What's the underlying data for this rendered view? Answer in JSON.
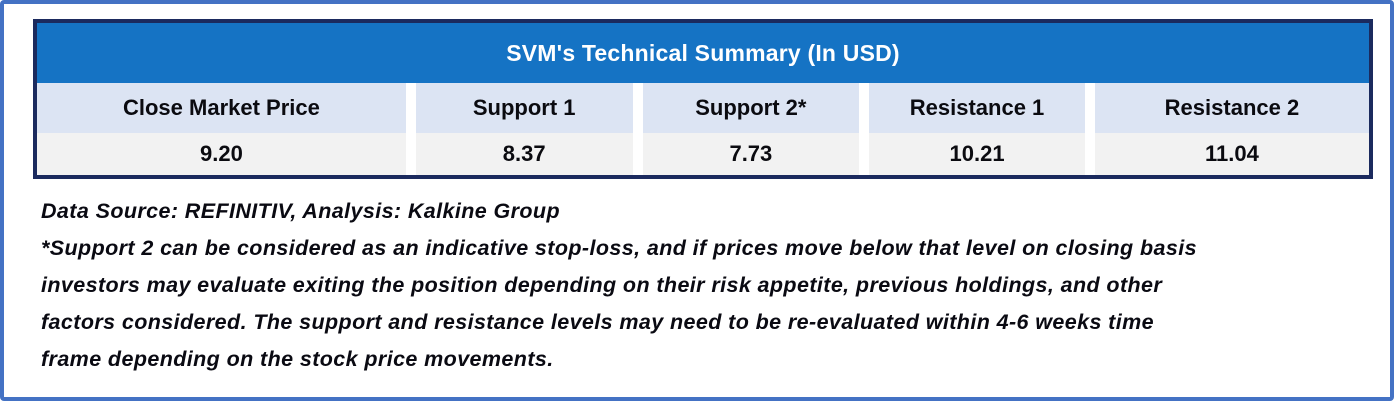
{
  "colors": {
    "outer_frame": "#4472C4",
    "table_border": "#1B2A5E",
    "title_bg": "#1573C4",
    "title_text": "#FFFFFF",
    "header_bg": "#DCE4F3",
    "value_bg": "#F2F2F2",
    "body_text": "#0A0A12"
  },
  "table": {
    "title": "SVM's Technical Summary (In USD)",
    "columns": [
      "Close Market Price",
      "Support 1",
      "Support 2*",
      "Resistance 1",
      "Resistance 2"
    ],
    "values": [
      "9.20",
      "8.37",
      "7.73",
      "10.21",
      "11.04"
    ]
  },
  "notes": {
    "source": "Data Source: REFINITIV, Analysis: Kalkine Group",
    "footnote_lines": [
      "*Support 2 can be considered as an indicative stop-loss, and if prices move below that level on closing basis",
      "investors may evaluate exiting the position depending on their risk appetite, previous holdings, and other",
      "factors considered. The support and resistance levels may need to be re-evaluated within 4-6 weeks time",
      "frame depending on the stock price movements."
    ]
  }
}
